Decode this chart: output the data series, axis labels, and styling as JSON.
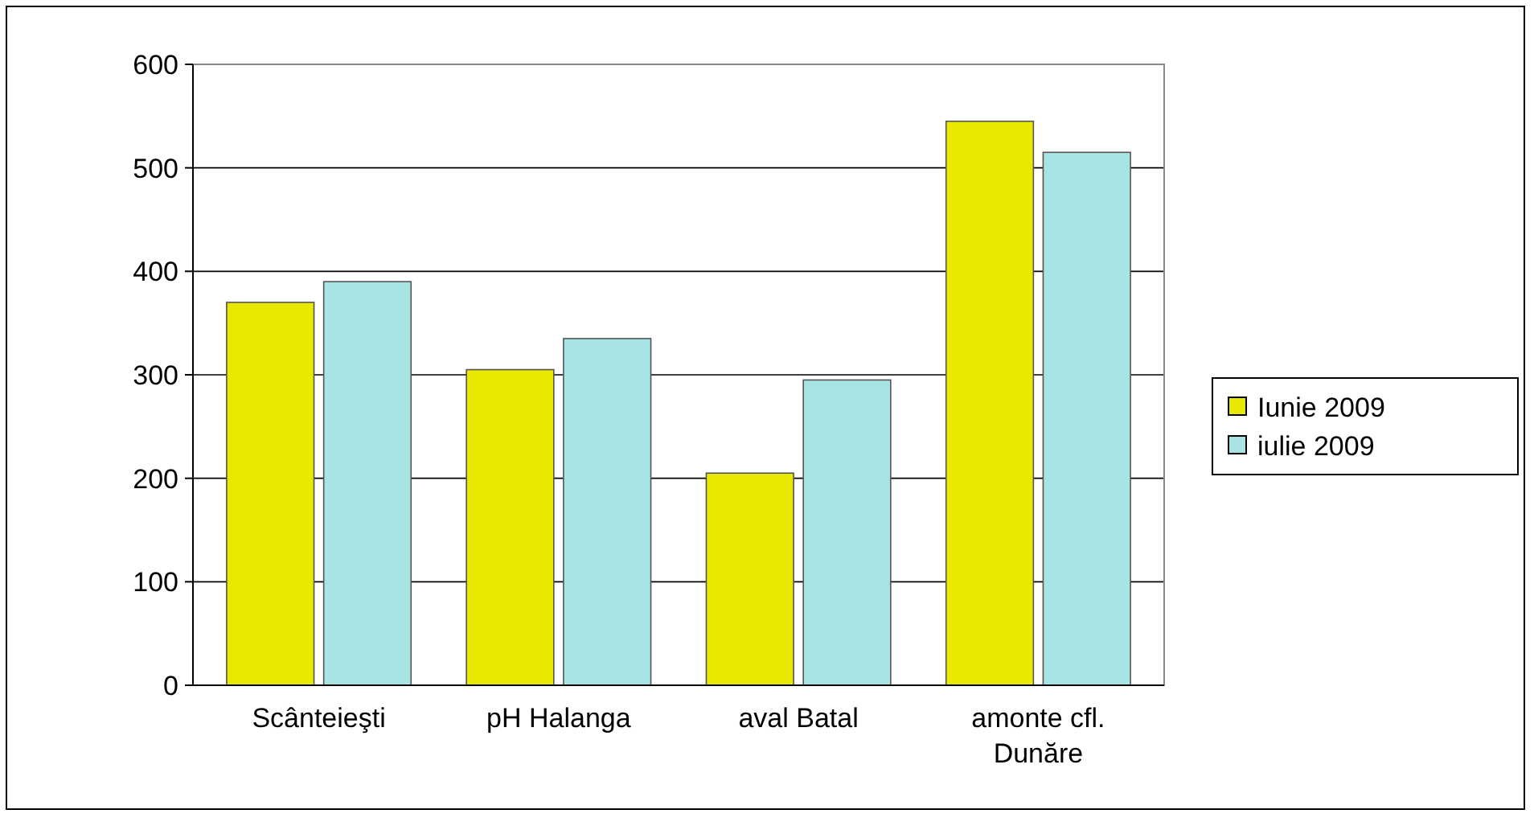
{
  "chart_data": {
    "type": "bar",
    "categories": [
      "Scânteieşti",
      "pH Halanga",
      "aval Batal",
      "amonte cfl. Dunăre"
    ],
    "series": [
      {
        "name": "Iunie 2009",
        "color": "#e8e800",
        "values": [
          370,
          305,
          205,
          545
        ]
      },
      {
        "name": "iulie 2009",
        "color": "#a8e4e4",
        "values": [
          390,
          335,
          295,
          515
        ]
      }
    ],
    "ylim": [
      0,
      600
    ],
    "yticks": [
      0,
      100,
      200,
      300,
      400,
      500,
      600
    ],
    "grid": "y",
    "legend": "right"
  }
}
